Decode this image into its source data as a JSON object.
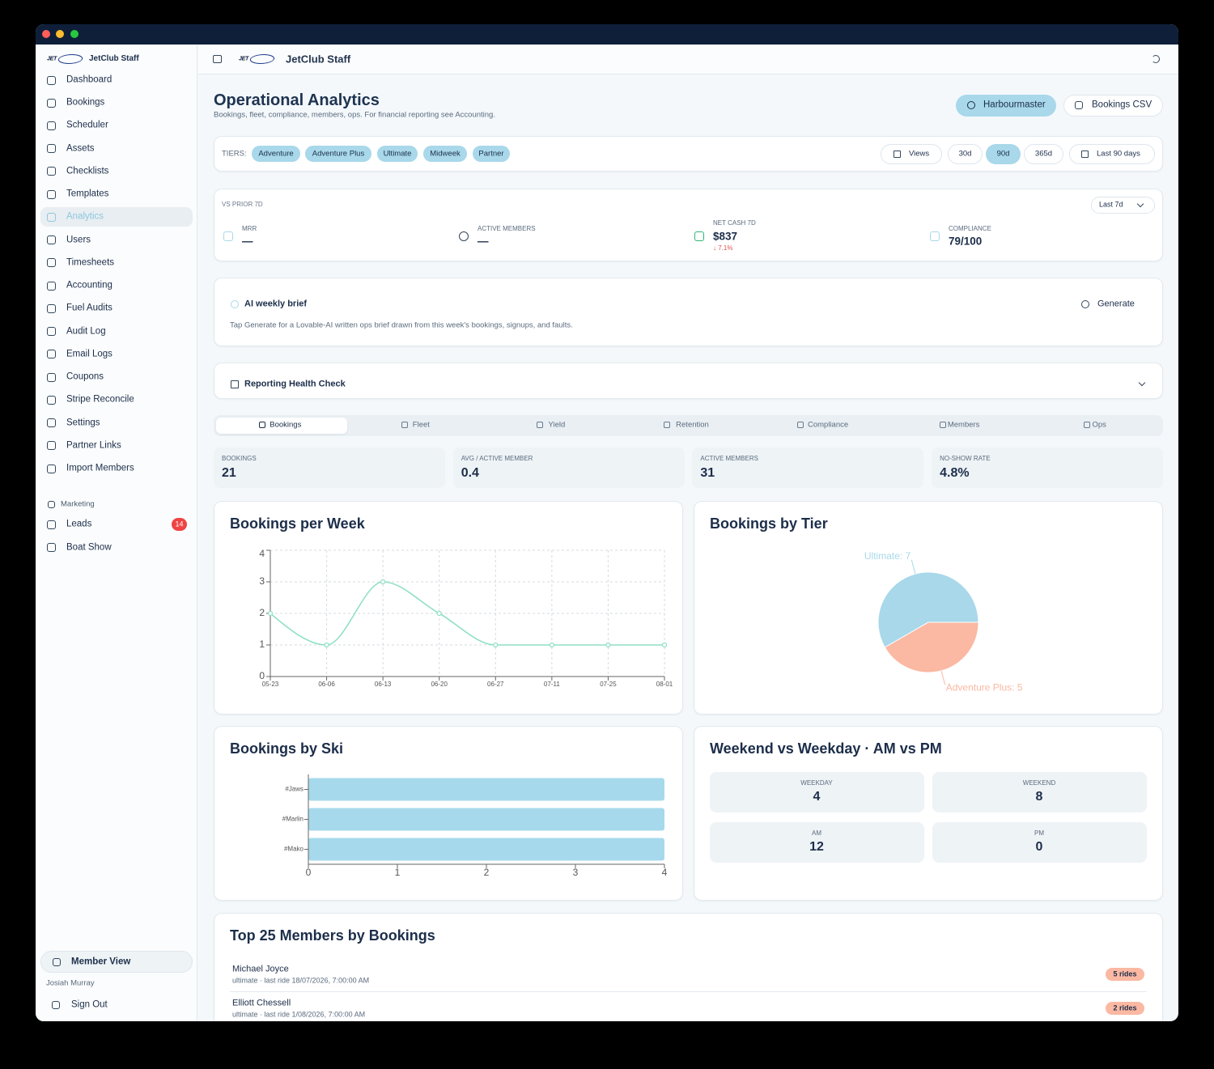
{
  "sidebar": {
    "logo": "JET",
    "brand": "JetClub Staff",
    "nav": [
      "Dashboard",
      "Bookings",
      "Scheduler",
      "Assets",
      "Checklists",
      "Templates",
      "Analytics",
      "Users",
      "Timesheets",
      "Accounting",
      "Fuel Audits",
      "Audit Log",
      "Email Logs",
      "Coupons",
      "Stripe Reconcile",
      "Settings",
      "Partner Links",
      "Import Members"
    ],
    "active": 6,
    "section": "Marketing",
    "marketing": [
      {
        "label": "Leads",
        "badge": 14
      },
      {
        "label": "Boat Show"
      }
    ],
    "member_view": "Member View",
    "user": "Josiah Murray",
    "sign_out": "Sign Out"
  },
  "header": {
    "logo": "JET",
    "brand": "JetClub Staff"
  },
  "page": {
    "title": "Operational Analytics",
    "subtitle": "Bookings, fleet, compliance, members, ops. For financial reporting see Accounting.",
    "actions": [
      "Harbourmaster",
      "Bookings CSV"
    ]
  },
  "filters": {
    "label": "TIERS:",
    "tiers": [
      "Adventure",
      "Adventure Plus",
      "Ultimate",
      "Midweek",
      "Partner"
    ],
    "views": "Views",
    "ranges": [
      "30d",
      "90d",
      "365d"
    ],
    "active_range": 1,
    "period": "Last 90 days"
  },
  "kpis": {
    "label": "VS PRIOR 7D",
    "period": "Last 7d",
    "items": [
      {
        "label": "MRR",
        "value": "—"
      },
      {
        "label": "ACTIVE MEMBERS",
        "value": "—"
      },
      {
        "label": "NET CASH 7D",
        "value": "$837",
        "delta": "↓ 7.1%"
      },
      {
        "label": "COMPLIANCE",
        "value": "79/100"
      }
    ]
  },
  "brief": {
    "title": "AI weekly brief",
    "text": "Tap Generate for a Lovable-AI written ops brief drawn from this week's bookings, signups, and faults.",
    "action": "Generate"
  },
  "health": {
    "title": "Reporting Health Check"
  },
  "tabs": {
    "items": [
      "Bookings",
      "Fleet",
      "Yield",
      "Retention",
      "Compliance",
      "Members",
      "Ops"
    ],
    "active": 0
  },
  "stats": [
    {
      "label": "BOOKINGS",
      "value": 21
    },
    {
      "label": "AVG / ACTIVE MEMBER",
      "value": 0.4
    },
    {
      "label": "ACTIVE MEMBERS",
      "value": 31
    },
    {
      "label": "NO-SHOW RATE",
      "value": "4.8%"
    }
  ],
  "chart_data": [
    {
      "type": "line",
      "title": "Bookings per Week",
      "categories": [
        "05-23",
        "06-06",
        "06-13",
        "06-20",
        "06-27",
        "07-11",
        "07-25",
        "08-01"
      ],
      "values": [
        2,
        1,
        3,
        2,
        1,
        1,
        1,
        1
      ],
      "color": "#8fe0c4",
      "ylim": [
        0,
        4
      ],
      "yticks": [
        0,
        1,
        2,
        3,
        4
      ],
      "grid": true
    },
    {
      "type": "pie",
      "title": "Bookings by Tier",
      "categories": [
        "Ultimate",
        "Adventure Plus"
      ],
      "values": [
        7,
        5
      ],
      "value_labels": [
        "Ultimate: 7",
        "Adventure Plus: 5"
      ],
      "colors": [
        "#a8d8ea",
        "#fbb8a2"
      ]
    },
    {
      "type": "hbar",
      "title": "Bookings by Ski",
      "categories": [
        "#Jaws",
        "#Marlin",
        "#Mako"
      ],
      "values": [
        4,
        4,
        4
      ],
      "color": "#a6d9ec",
      "xlim": [
        0,
        4
      ],
      "xticks": [
        0,
        1,
        2,
        3,
        4
      ]
    }
  ],
  "split": {
    "title": "Weekend vs Weekday · AM vs PM",
    "items": [
      {
        "label": "WEEKDAY",
        "value": 4
      },
      {
        "label": "WEEKEND",
        "value": 8
      },
      {
        "label": "AM",
        "value": 12
      },
      {
        "label": "PM",
        "value": 0
      }
    ]
  },
  "members": {
    "title": "Top 25 Members by Bookings",
    "rows": [
      {
        "name": "Michael Joyce",
        "detail": "ultimate · last ride 18/07/2026, 7:00:00 AM",
        "badge": "5 rides"
      },
      {
        "name": "Elliott Chessell",
        "detail": "ultimate · last ride 1/08/2026, 7:00:00 AM",
        "badge": "2 rides"
      }
    ]
  }
}
